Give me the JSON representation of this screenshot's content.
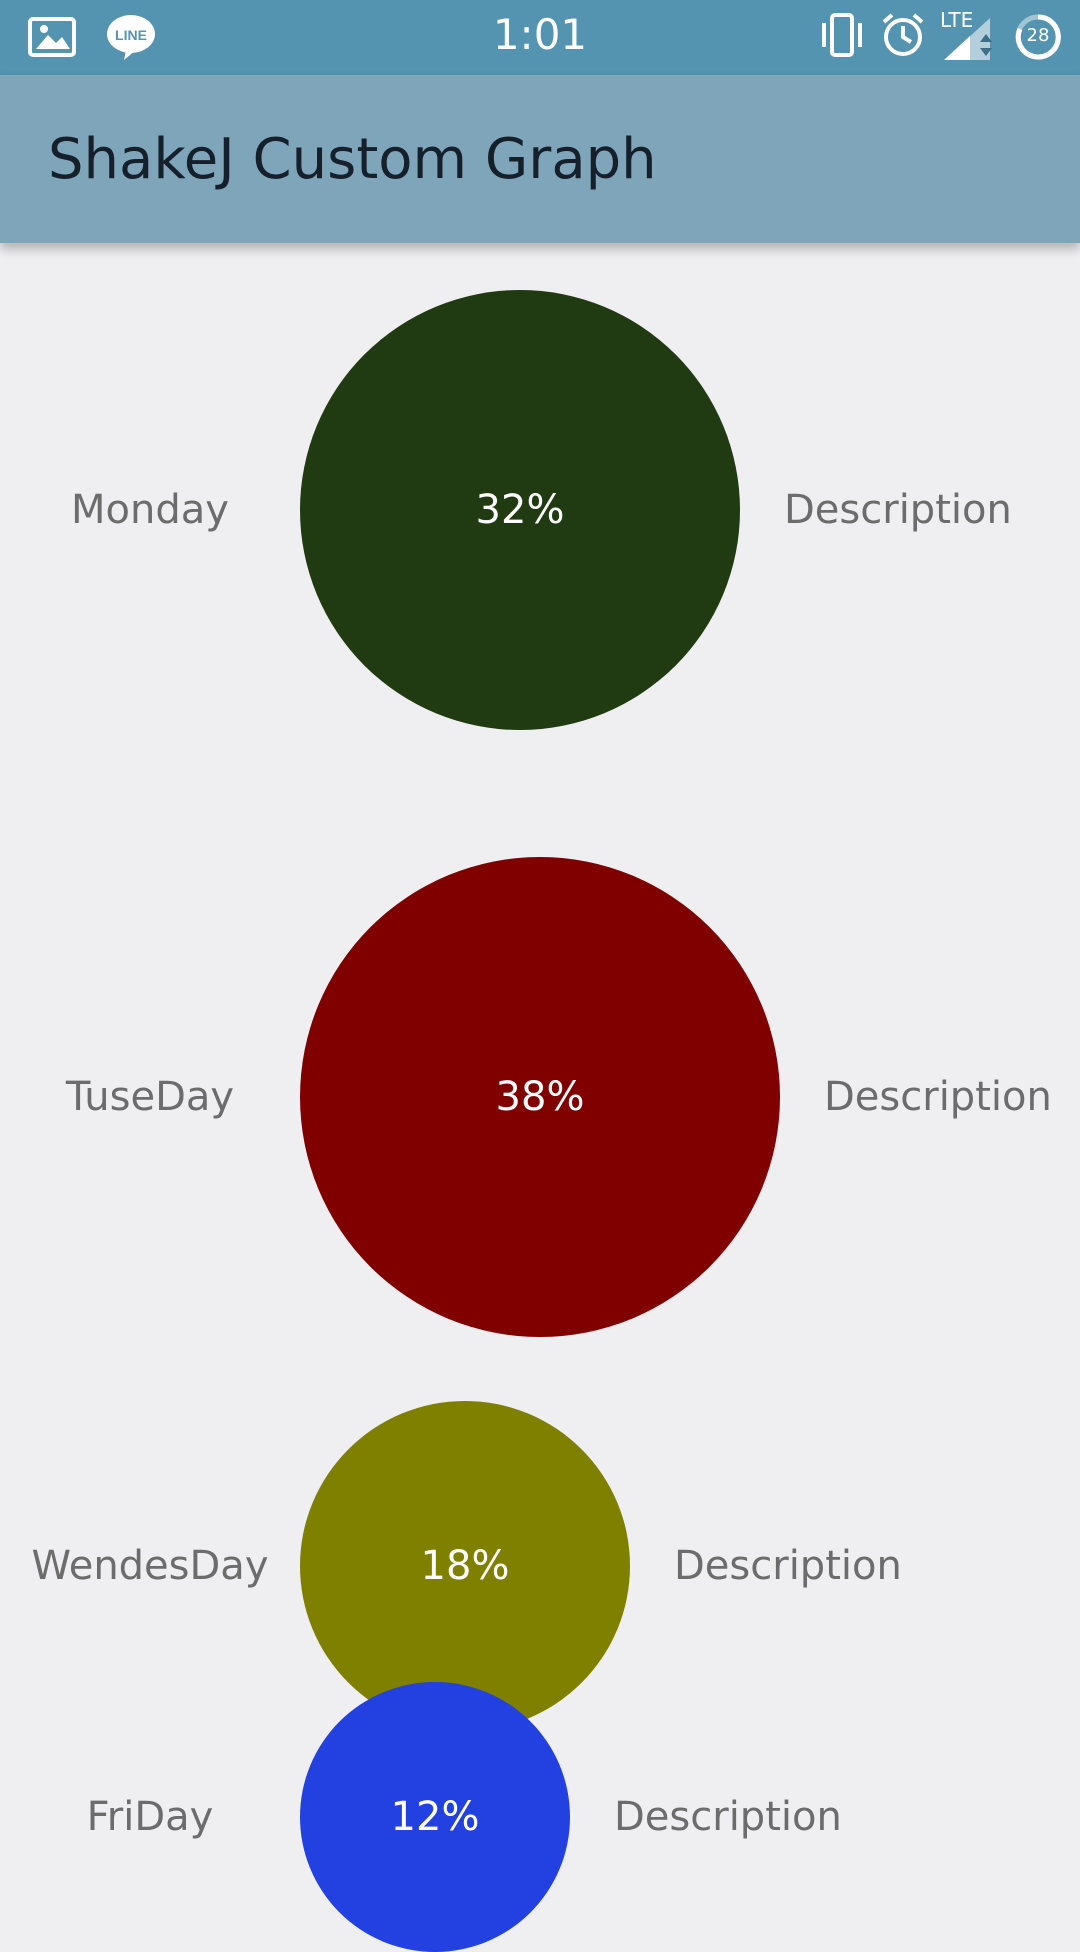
{
  "status_bar": {
    "time": "1:01",
    "network": "LTE",
    "battery_level": "28",
    "left_icons": [
      "gallery-icon",
      "line-icon"
    ],
    "right_icons": [
      "vibrate-icon",
      "alarm-icon",
      "signal-icon",
      "battery-icon"
    ]
  },
  "app_bar": {
    "title": "ShakeJ Custom Graph",
    "color": "#7fa5bb"
  },
  "chart_data": {
    "type": "bubble",
    "categories": [
      "Monday",
      "TuseDay",
      "WendesDay",
      "FriDay"
    ],
    "values": [
      32,
      38,
      18,
      12
    ],
    "value_labels": [
      "32%",
      "38%",
      "18%",
      "12%"
    ],
    "descriptions": [
      "Description",
      "Description",
      "Description",
      "Description"
    ],
    "colors": [
      "#203a12",
      "#800000",
      "#7f7f00",
      "#2340e0"
    ]
  }
}
